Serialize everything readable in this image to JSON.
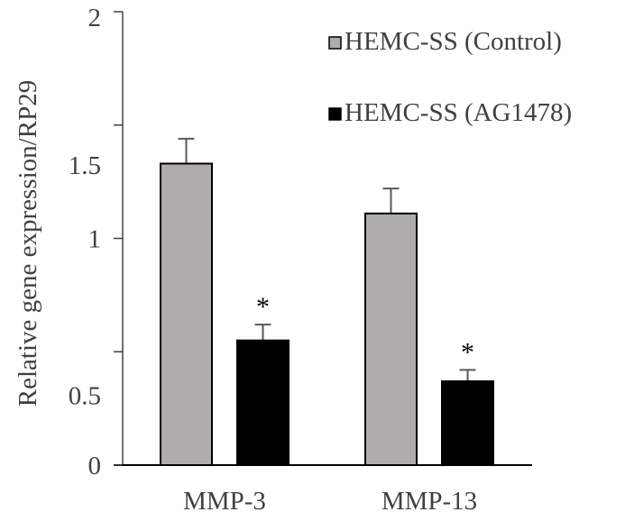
{
  "chart_data": {
    "type": "bar",
    "title": "",
    "xlabel": "",
    "ylabel": "Relative gene expression/RP29",
    "ylim": [
      0,
      2
    ],
    "yticks": [
      0,
      0.5,
      1,
      1.5,
      2
    ],
    "ytick_labels": [
      "0",
      "0.5",
      "1",
      "1.5",
      "2"
    ],
    "categories": [
      "MMP-3",
      "MMP-13"
    ],
    "series": [
      {
        "name": "HEMC-SS (Control)",
        "color": "#B0ACAB",
        "values": [
          1.33,
          1.11
        ],
        "error": [
          0.11,
          0.11
        ],
        "annotations": [
          "",
          ""
        ]
      },
      {
        "name": "HEMC-SS (AG1478)",
        "color": "#000000",
        "values": [
          0.55,
          0.37
        ],
        "error": [
          0.07,
          0.05
        ],
        "annotations": [
          "*",
          "*"
        ]
      }
    ],
    "grid": false,
    "legend": "top-right"
  }
}
